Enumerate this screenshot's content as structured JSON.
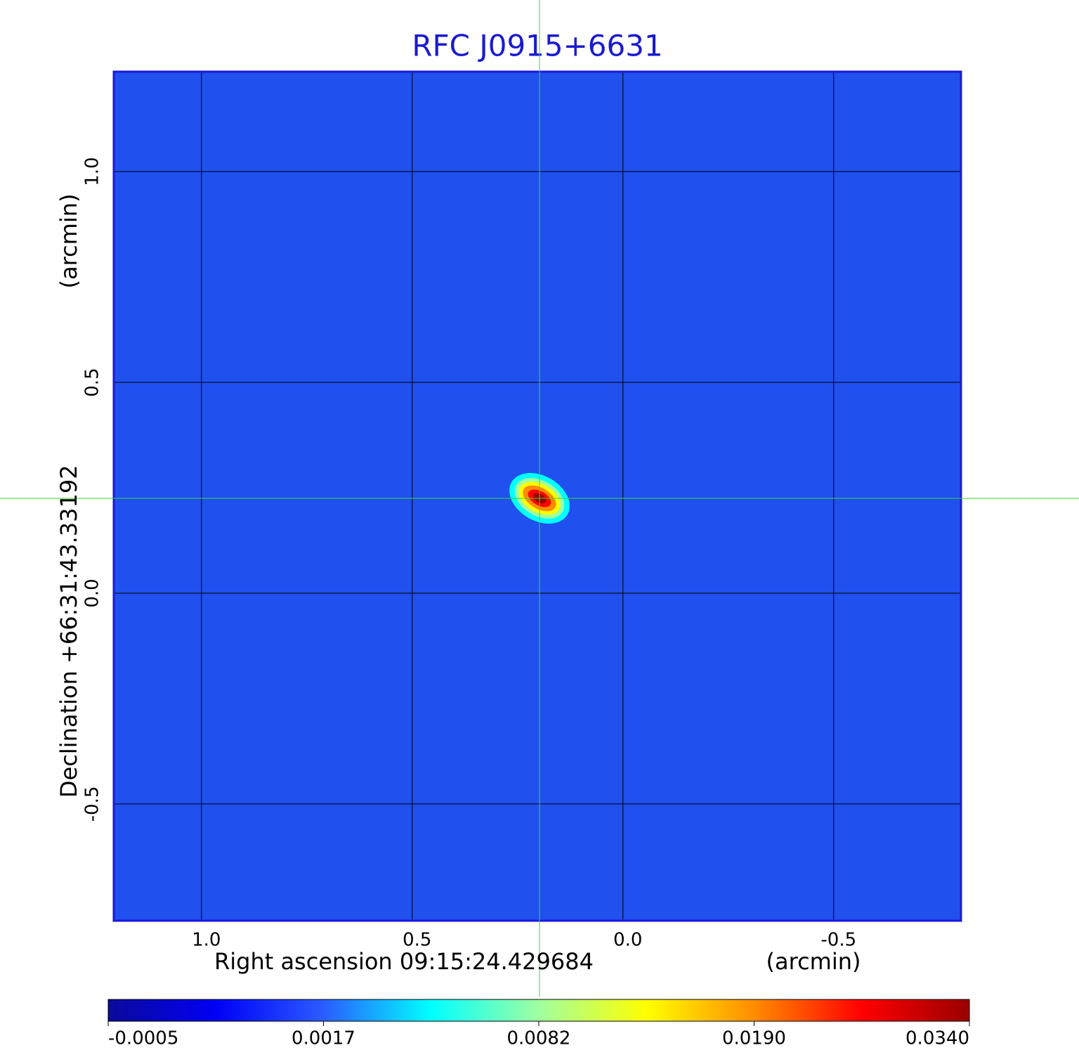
{
  "chart_data": {
    "type": "image",
    "title": "RFC J0915+6631",
    "xlabel": "Right ascension  09:15:24.429684",
    "xunit": "(arcmin)",
    "ylabel": "Declination  +66:31:43.33192",
    "yunit": "(arcmin)",
    "xlim": [
      1.208,
      -0.802
    ],
    "ylim": [
      -0.777,
      1.237
    ],
    "xticks": [
      {
        "value": 1,
        "label": "1.0"
      },
      0.5,
      {
        "value": 0,
        "label": "0.0"
      },
      -0.5
    ],
    "yticks": [
      {
        "value": 1,
        "label": "1.0"
      },
      0.5,
      {
        "value": 0,
        "label": "0.0"
      },
      -0.5
    ],
    "grid": true,
    "background": "#2050ee",
    "source": {
      "x": 0.198,
      "y": 0.225,
      "peak": 0.034
    },
    "colorbar": {
      "ticks": [
        -0.0005,
        0.0017,
        0.0082,
        {
          "value": 0.019,
          "label": "0.0190"
        },
        {
          "value": 0.034,
          "label": "0.0340"
        }
      ],
      "colors": [
        "#0a0a9a",
        "#0000f5",
        "#2a5cff",
        "#00ffff",
        "#a0ffa0",
        "#ffff00",
        "#ff8c00",
        "#ff0000",
        "#9a0000"
      ]
    }
  }
}
